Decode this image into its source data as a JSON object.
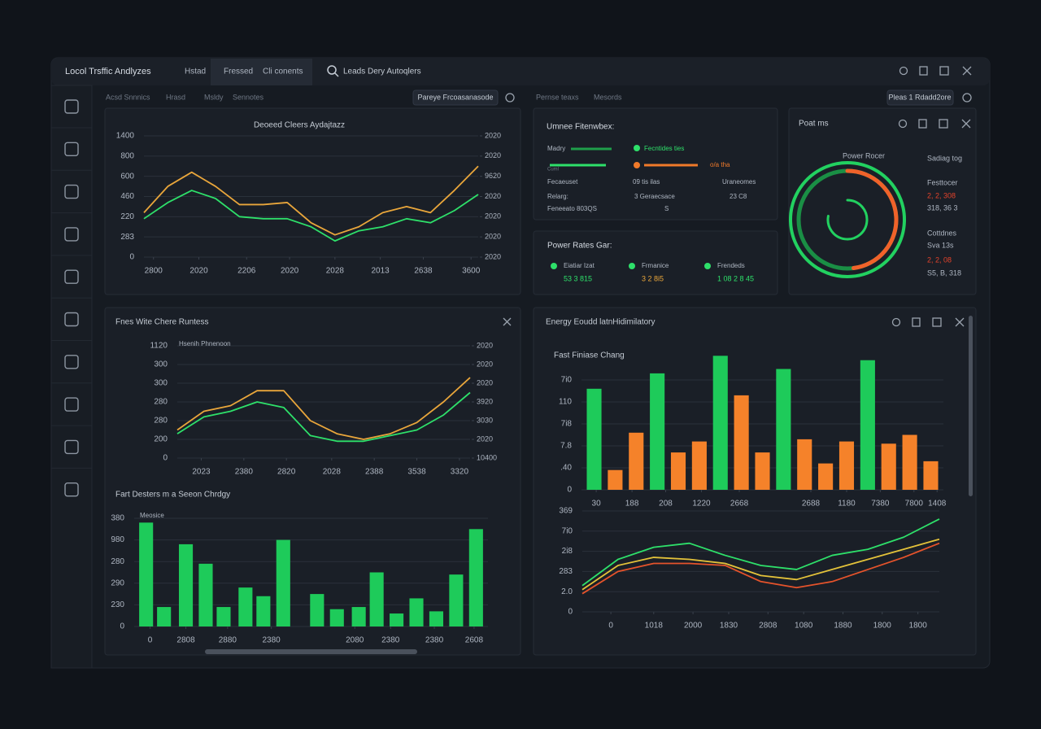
{
  "window": {
    "title": "Locol Trsffic Andlyzes",
    "tabs": [
      "Hstad",
      "Fressed",
      "Cli conents"
    ],
    "search": "Leads Dery Autoqlers"
  },
  "toolbar": {
    "left_links": [
      "Acsd Snnnics",
      "Hrasd",
      "Msldy",
      "Sennotes"
    ],
    "left_button": "Pareye Frcoasanasode",
    "middle_links": [
      "Pernse teaxs",
      "Mesords"
    ],
    "right_button": "Pleas 1 Rdadd2ore"
  },
  "panels": {
    "bottom_left_title": "Fnes Wite Chere Runtess",
    "bottom_right_title": "Energy Eoudd latnHidimilatory"
  },
  "charts": [
    {
      "type": "line",
      "title": "Deoeed Cleers Aydajtazz",
      "x": [
        0,
        1,
        2,
        3,
        4,
        5,
        6,
        7,
        8,
        9,
        10,
        11,
        12,
        13,
        14
      ],
      "xlim": [
        0,
        14
      ],
      "xticks": [
        {
          "value": 0.4,
          "label": "2800"
        },
        {
          "value": 2.3,
          "label": "2020"
        },
        {
          "value": 4.3,
          "label": "2206"
        },
        {
          "value": 6.1,
          "label": "2020"
        },
        {
          "value": 8.0,
          "label": "2028"
        },
        {
          "value": 9.9,
          "label": "2013"
        },
        {
          "value": 11.7,
          "label": "2638"
        },
        {
          "value": 13.7,
          "label": "3600"
        }
      ],
      "ylim": [
        0,
        6
      ],
      "yticks": [
        {
          "value": 0,
          "label": "0"
        },
        {
          "value": 1,
          "label": "283"
        },
        {
          "value": 2,
          "label": "220"
        },
        {
          "value": 3,
          "label": "460"
        },
        {
          "value": 4,
          "label": "600"
        },
        {
          "value": 5,
          "label": "800"
        },
        {
          "value": 6,
          "label": "1400"
        }
      ],
      "y2lim": [
        0,
        6
      ],
      "y2ticks": [
        {
          "value": 0,
          "label": "2020"
        },
        {
          "value": 1,
          "label": "2020"
        },
        {
          "value": 2,
          "label": "2020"
        },
        {
          "value": 3,
          "label": "2020"
        },
        {
          "value": 4,
          "label": "9620"
        },
        {
          "value": 5,
          "label": "2020"
        },
        {
          "value": 6,
          "label": "2020"
        }
      ],
      "grid": true,
      "series": [
        {
          "color": "#e9a63b",
          "values": [
            2.2,
            3.5,
            4.2,
            3.5,
            2.6,
            2.6,
            2.7,
            1.7,
            1.1,
            1.5,
            2.2,
            2.5,
            2.2,
            3.3,
            4.5
          ]
        },
        {
          "color": "#2ee06a",
          "values": [
            1.9,
            2.7,
            3.3,
            2.9,
            2.0,
            1.9,
            1.9,
            1.5,
            0.8,
            1.3,
            1.5,
            1.9,
            1.7,
            2.3,
            3.1
          ]
        }
      ]
    },
    {
      "type": "line",
      "label": "Hsenih Phnenoon",
      "x": [
        0,
        1,
        2,
        3,
        4,
        5,
        6,
        7,
        8,
        9,
        10,
        11
      ],
      "xlim": [
        0,
        11
      ],
      "xticks": [
        {
          "value": 0.9,
          "label": "2023"
        },
        {
          "value": 2.5,
          "label": "2380"
        },
        {
          "value": 4.1,
          "label": "2820"
        },
        {
          "value": 5.8,
          "label": "2028"
        },
        {
          "value": 7.4,
          "label": "2388"
        },
        {
          "value": 9.0,
          "label": "3538"
        },
        {
          "value": 10.6,
          "label": "3320"
        }
      ],
      "ylim": [
        0,
        6
      ],
      "yticks": [
        {
          "value": 0,
          "label": "0"
        },
        {
          "value": 1,
          "label": "200"
        },
        {
          "value": 2,
          "label": "280"
        },
        {
          "value": 3,
          "label": "280"
        },
        {
          "value": 4,
          "label": "300"
        },
        {
          "value": 5,
          "label": "300"
        },
        {
          "value": 6,
          "label": "1120"
        }
      ],
      "y2lim": [
        0,
        6
      ],
      "y2ticks": [
        {
          "value": 0,
          "label": "10400"
        },
        {
          "value": 1,
          "label": "2020"
        },
        {
          "value": 2,
          "label": "3030"
        },
        {
          "value": 3,
          "label": "3920"
        },
        {
          "value": 4,
          "label": "2020"
        },
        {
          "value": 5,
          "label": "2020"
        },
        {
          "value": 6,
          "label": "2020"
        }
      ],
      "grid": true,
      "series": [
        {
          "color": "#e9a63b",
          "values": [
            1.5,
            2.5,
            2.8,
            3.6,
            3.6,
            2.0,
            1.3,
            1.0,
            1.3,
            1.9,
            3.0,
            4.3
          ]
        },
        {
          "color": "#2ee06a",
          "values": [
            1.3,
            2.2,
            2.5,
            3.0,
            2.7,
            1.2,
            0.9,
            0.9,
            1.2,
            1.5,
            2.3,
            3.5
          ]
        }
      ]
    },
    {
      "type": "bar",
      "title": "Fart Desters m a Seeon Chrdgy",
      "legend": "Meosice",
      "color": "#1ecb5a",
      "x": [
        0,
        0.9,
        2,
        3,
        3.9,
        5,
        5.9,
        6.9,
        8.6,
        9.6,
        10.7,
        11.6,
        12.6,
        13.6,
        14.6,
        15.6,
        16.6
      ],
      "xlim": [
        -0.6,
        17.2
      ],
      "values": [
        4.8,
        0.9,
        3.8,
        2.9,
        0.9,
        1.8,
        1.4,
        4.0,
        1.5,
        0.8,
        0.9,
        2.5,
        0.6,
        1.3,
        0.7,
        2.4,
        4.5
      ],
      "xticks": [
        {
          "value": 0.2,
          "label": "0"
        },
        {
          "value": 2.0,
          "label": "2808"
        },
        {
          "value": 4.1,
          "label": "2880"
        },
        {
          "value": 6.3,
          "label": "2380"
        },
        {
          "value": 10.5,
          "label": "2080"
        },
        {
          "value": 12.3,
          "label": "2380"
        },
        {
          "value": 14.5,
          "label": "2380"
        },
        {
          "value": 16.5,
          "label": "2608"
        }
      ],
      "ylim": [
        0,
        5
      ],
      "yticks": [
        {
          "value": 0,
          "label": "0"
        },
        {
          "value": 1,
          "label": "230"
        },
        {
          "value": 2,
          "label": "290"
        },
        {
          "value": 3,
          "label": "280"
        },
        {
          "value": 4,
          "label": "980"
        },
        {
          "value": 5,
          "label": "380"
        }
      ],
      "grid": true
    },
    {
      "type": "bar",
      "title": "Fast Finiase Chang",
      "xlim": [
        -0.6,
        16.6
      ],
      "values": [
        4.6,
        0.9,
        2.6,
        5.3,
        1.7,
        2.2,
        6.1,
        4.3,
        1.7,
        5.5,
        2.3,
        1.2,
        2.2,
        5.9,
        2.1,
        2.5,
        1.3
      ],
      "colors": [
        "#1ecb5a",
        "#f5822a",
        "#f5822a",
        "#1ecb5a",
        "#f5822a",
        "#f5822a",
        "#1ecb5a",
        "#f5822a",
        "#f5822a",
        "#1ecb5a",
        "#f5822a",
        "#f5822a",
        "#f5822a",
        "#1ecb5a",
        "#f5822a",
        "#f5822a",
        "#f5822a"
      ],
      "xticks": [
        {
          "value": 0.1,
          "label": "30"
        },
        {
          "value": 1.8,
          "label": "188"
        },
        {
          "value": 3.4,
          "label": "208"
        },
        {
          "value": 5.1,
          "label": "1220"
        },
        {
          "value": 6.9,
          "label": "2668"
        },
        {
          "value": 10.3,
          "label": "2688"
        },
        {
          "value": 12.0,
          "label": "1180"
        },
        {
          "value": 13.6,
          "label": "7380"
        },
        {
          "value": 15.2,
          "label": "7800"
        },
        {
          "value": 16.3,
          "label": "1408"
        }
      ],
      "ylim": [
        0,
        6.2
      ],
      "yticks": [
        {
          "value": 0,
          "label": "0"
        },
        {
          "value": 1,
          "label": ".40"
        },
        {
          "value": 2,
          "label": "7.8"
        },
        {
          "value": 3,
          "label": "7i8"
        },
        {
          "value": 4,
          "label": "110"
        },
        {
          "value": 5,
          "label": "7i0"
        }
      ],
      "grid": true
    },
    {
      "type": "line",
      "x": [
        0,
        1,
        2,
        3,
        4,
        5,
        6,
        7,
        8,
        9,
        10
      ],
      "xlim": [
        0,
        10
      ],
      "xticks": [
        {
          "value": 0.8,
          "label": "0"
        },
        {
          "value": 2.0,
          "label": "1018"
        },
        {
          "value": 3.1,
          "label": "2000"
        },
        {
          "value": 4.1,
          "label": "1830"
        },
        {
          "value": 5.2,
          "label": "2808"
        },
        {
          "value": 6.2,
          "label": "1080"
        },
        {
          "value": 7.3,
          "label": "1880"
        },
        {
          "value": 8.4,
          "label": "1800"
        },
        {
          "value": 9.4,
          "label": "1800"
        }
      ],
      "ylim": [
        0,
        5
      ],
      "yticks": [
        {
          "value": 0,
          "label": "0"
        },
        {
          "value": 1,
          "label": "2.0"
        },
        {
          "value": 2,
          "label": "283"
        },
        {
          "value": 3,
          "label": "2i8"
        },
        {
          "value": 4,
          "label": "7i0"
        },
        {
          "value": 5,
          "label": "369"
        }
      ],
      "grid": true,
      "series": [
        {
          "color": "#2ee06a",
          "values": [
            1.3,
            2.6,
            3.2,
            3.4,
            2.8,
            2.3,
            2.1,
            2.8,
            3.1,
            3.7,
            4.6
          ]
        },
        {
          "color": "#e3c23a",
          "values": [
            1.1,
            2.3,
            2.7,
            2.6,
            2.4,
            1.8,
            1.6,
            2.1,
            2.6,
            3.1,
            3.6
          ]
        },
        {
          "color": "#e5532b",
          "values": [
            0.9,
            2.0,
            2.4,
            2.4,
            2.3,
            1.5,
            1.2,
            1.5,
            2.1,
            2.7,
            3.4
          ]
        }
      ]
    }
  ],
  "feature_panel": {
    "title": "Umnee Fitenwbex:",
    "rows": [
      [
        "Madry",
        "Fecntides ties"
      ],
      [
        "Cuml",
        "o/a tha"
      ],
      [
        "Fecaeuset",
        "09 tis ilas",
        "Uraneomes"
      ],
      [
        "Relarg:",
        "3 Geraecsace",
        "23 C8"
      ],
      [
        "Feneeato 803QS",
        "S"
      ]
    ]
  },
  "power_rates": {
    "title": "Power Rates Gar:",
    "items": [
      {
        "name": "Eiatiar Izat",
        "value": "53 3 815",
        "color": "#2ee06a"
      },
      {
        "name": "Frmanice",
        "value": "3 2 8i5",
        "color": "#e9a63b"
      },
      {
        "name": "Frendeds",
        "value": "1 08 2 8 45",
        "color": "#2ee06a"
      }
    ]
  },
  "power_panel": {
    "title": "Poat ms",
    "gauge_title": "Power Rocer",
    "rings": [
      {
        "value": 100,
        "color": "#22d160"
      },
      {
        "value": 48,
        "color": "#f0622a"
      },
      {
        "value": 78,
        "color": "#22d160"
      }
    ],
    "side": [
      {
        "text": "Sadiag tog",
        "color": "#aeb6c2"
      },
      {
        "text": "Festtocer",
        "color": "#aeb6c2"
      },
      {
        "text": "2, 2, 308",
        "color": "#e5432b"
      },
      {
        "text": "318, 36 3",
        "color": "#aeb6c2"
      },
      {
        "text": "Cottdnes",
        "color": "#aeb6c2"
      },
      {
        "text": "Sva 13s",
        "color": "#aeb6c2"
      },
      {
        "text": "2, 2, 08",
        "color": "#e5432b"
      },
      {
        "text": "S5, B, 318",
        "color": "#aeb6c2"
      }
    ]
  }
}
